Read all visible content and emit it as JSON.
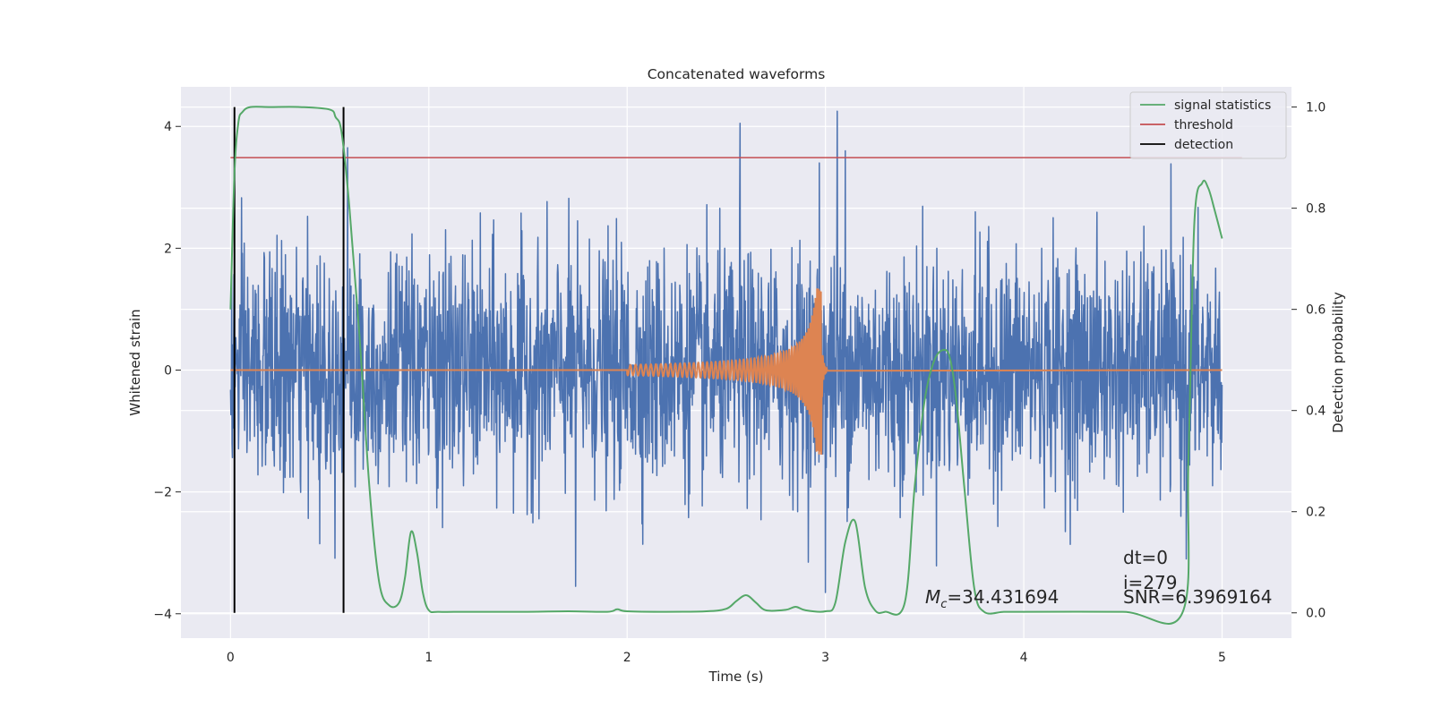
{
  "chart_data": {
    "type": "line",
    "title": "Concatenated waveforms",
    "xlabel": "Time (s)",
    "ylabel": "Whitened strain",
    "ylabel_right": "Detection probability",
    "xlim": [
      -0.25,
      5.35
    ],
    "ylim": [
      -4.4,
      4.65
    ],
    "ylim_right": [
      -0.05,
      1.04
    ],
    "x_ticks": [
      0,
      1,
      2,
      3,
      4,
      5
    ],
    "y_ticks": [
      -4,
      -2,
      0,
      2,
      4
    ],
    "y_ticks_right": [
      0.0,
      0.2,
      0.4,
      0.6,
      0.8,
      1.0
    ],
    "x_tick_labels": [
      "0",
      "1",
      "2",
      "3",
      "4",
      "5"
    ],
    "y_tick_labels": [
      "−4",
      "−2",
      "0",
      "2",
      "4"
    ],
    "y_tick_labels_right": [
      "0.0",
      "0.2",
      "0.4",
      "0.6",
      "0.8",
      "1.0"
    ],
    "grid": true,
    "legend_position": "top-right",
    "colors": {
      "background": "#eaeaf2",
      "grid": "#ffffff",
      "noise": "#4c72b0",
      "waveform": "#dd8452",
      "signal_statistics": "#55a868",
      "threshold": "#c44e52",
      "detection": "#000000"
    },
    "legend": [
      {
        "label": "signal statistics",
        "color": "#55a868"
      },
      {
        "label": "threshold",
        "color": "#c44e52"
      },
      {
        "label": "detection",
        "color": "#000000"
      }
    ],
    "series": [
      {
        "name": "signal statistics",
        "axis": "right",
        "x": [
          0.0,
          0.02,
          0.04,
          0.06,
          0.1,
          0.2,
          0.35,
          0.5,
          0.53,
          0.56,
          0.6,
          0.65,
          0.7,
          0.75,
          0.8,
          0.85,
          0.88,
          0.91,
          0.94,
          0.97,
          1.0,
          1.05,
          1.2,
          1.5,
          1.7,
          1.9,
          1.95,
          2.0,
          2.2,
          2.4,
          2.5,
          2.55,
          2.6,
          2.65,
          2.7,
          2.8,
          2.85,
          2.9,
          3.0,
          3.05,
          3.1,
          3.15,
          3.2,
          3.25,
          3.3,
          3.4,
          3.45,
          3.5,
          3.55,
          3.6,
          3.63,
          3.66,
          3.7,
          3.75,
          3.8,
          3.9,
          4.0,
          4.5,
          4.8,
          4.83,
          4.86,
          4.9,
          4.93,
          4.96,
          5.0
        ],
        "y": [
          0.6,
          0.87,
          0.97,
          0.99,
          1.0,
          1.0,
          1.0,
          0.995,
          0.98,
          0.95,
          0.8,
          0.55,
          0.25,
          0.06,
          0.015,
          0.02,
          0.07,
          0.16,
          0.12,
          0.04,
          0.005,
          0.002,
          0.002,
          0.002,
          0.003,
          0.002,
          0.007,
          0.003,
          0.002,
          0.003,
          0.008,
          0.023,
          0.035,
          0.02,
          0.005,
          0.006,
          0.012,
          0.005,
          0.003,
          0.02,
          0.14,
          0.18,
          0.05,
          0.005,
          0.002,
          0.02,
          0.25,
          0.42,
          0.5,
          0.52,
          0.5,
          0.42,
          0.25,
          0.05,
          0.002,
          0.002,
          0.002,
          0.002,
          0.0,
          0.3,
          0.77,
          0.85,
          0.84,
          0.8,
          0.74
        ]
      },
      {
        "name": "threshold",
        "axis": "right",
        "x": [
          0.0,
          5.1
        ],
        "y": [
          0.9,
          0.9
        ]
      },
      {
        "name": "detection",
        "axis": "right",
        "segments": [
          {
            "x": 0.02,
            "y": [
              0.0,
              1.0
            ]
          },
          {
            "x": 0.57,
            "y": [
              0.0,
              1.0
            ]
          }
        ]
      },
      {
        "axis": "left",
        "description": "whitened noise",
        "x_range": [
          0.0,
          5.0
        ],
        "typical_amplitude": 1.0,
        "peak_max": 4.25,
        "peak_min": -3.65,
        "spikes": [
          {
            "x": 0.59,
            "y": 3.65
          },
          {
            "x": 2.57,
            "y": 4.05
          },
          {
            "x": 2.97,
            "y": 3.4
          },
          {
            "x": 3.06,
            "y": 4.25
          },
          {
            "x": 3.1,
            "y": 3.6
          },
          {
            "x": 0.45,
            "y": -2.85
          },
          {
            "x": 1.74,
            "y": -3.55
          },
          {
            "x": 3.0,
            "y": -3.65
          },
          {
            "x": 4.82,
            "y": -3.1
          }
        ]
      },
      {
        "axis": "left",
        "description": "injected chirp",
        "t_start": 2.0,
        "t_merger": 2.98,
        "amplitude_start": 0.08,
        "amplitude_peak": 1.4,
        "t_end": 5.0
      }
    ],
    "annotations": {
      "chirp_mass": "$M_c$=34.431694",
      "dt": "dt=0",
      "index": "i=279",
      "snr": "SNR=6.3969164"
    }
  }
}
